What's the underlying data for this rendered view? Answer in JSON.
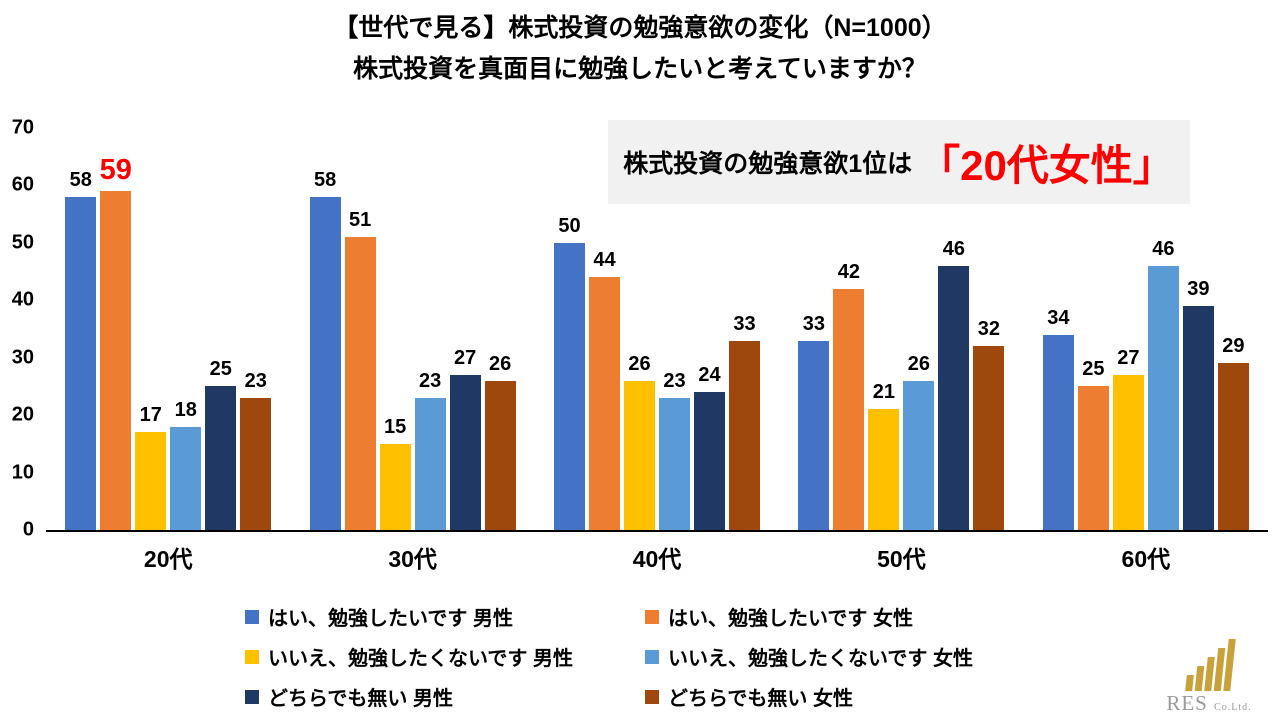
{
  "title": {
    "line1": "【世代で見る】株式投資の勉強意欲の変化（N=1000）",
    "line2": "株式投資を真面目に勉強したいと考えていますか？"
  },
  "annotation": {
    "prefix": "株式投資の勉強意欲1位は",
    "highlight": "「20代女性」",
    "highlight_color": "#ff0000",
    "background": "#f1f1f1"
  },
  "chart_data": {
    "type": "bar",
    "categories": [
      "20代",
      "30代",
      "40代",
      "50代",
      "60代"
    ],
    "series": [
      {
        "name": "はい、勉強したいです 男性",
        "color": "#4472c4",
        "values": [
          58,
          58,
          50,
          33,
          34
        ]
      },
      {
        "name": "はい、勉強したいです 女性",
        "color": "#ed7d31",
        "values": [
          59,
          51,
          44,
          42,
          25
        ]
      },
      {
        "name": "いいえ、勉強したくないです 男性",
        "color": "#ffc000",
        "values": [
          17,
          15,
          26,
          21,
          27
        ]
      },
      {
        "name": "いいえ、勉強したくないです 女性",
        "color": "#5b9bd5",
        "values": [
          18,
          23,
          23,
          26,
          46
        ]
      },
      {
        "name": "どちらでも無い 男性",
        "color": "#203864",
        "values": [
          25,
          27,
          24,
          46,
          39
        ]
      },
      {
        "name": "どちらでも無い 女性",
        "color": "#9e480e",
        "values": [
          23,
          26,
          33,
          32,
          29
        ]
      }
    ],
    "ylim": [
      0,
      70
    ],
    "yticks": [
      0,
      10,
      20,
      30,
      40,
      50,
      60,
      70
    ],
    "grid": false,
    "legend_position": "bottom",
    "highlight_label": {
      "series": 1,
      "category": 0,
      "color": "#ff0000"
    }
  },
  "logo": {
    "name": "RES",
    "suffix": "Co.Ltd."
  }
}
